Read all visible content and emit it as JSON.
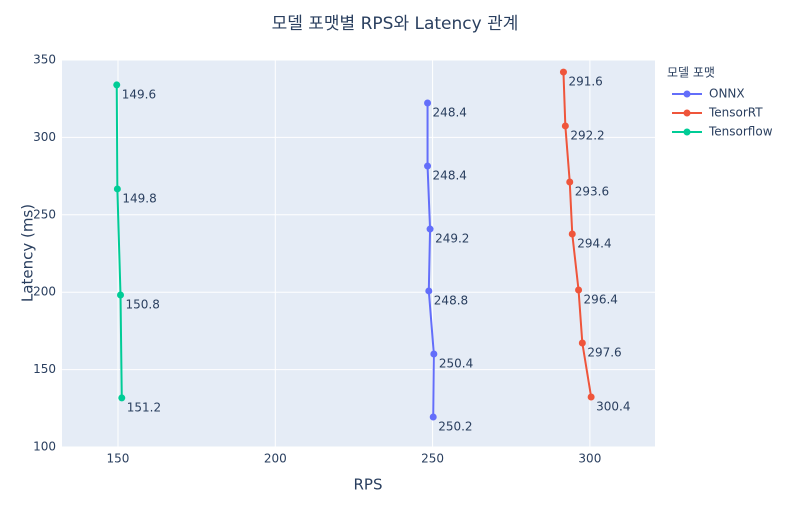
{
  "chart_data": {
    "type": "line",
    "title": "모델 포맷별 RPS와 Latency 관계",
    "x_label": "RPS",
    "y_label": "Latency (ms)",
    "legend_title": "모델 포맷",
    "xlim": [
      132.2,
      320.7
    ],
    "xticks": [
      150,
      200,
      250,
      300
    ],
    "ylim": [
      100,
      350
    ],
    "yticks": [
      100,
      150,
      200,
      250,
      300,
      350
    ],
    "grid": true,
    "legend": "right",
    "series": [
      {
        "name": "ONNX",
        "color": "#636efa",
        "x": [
          248.4,
          248.4,
          249.2,
          248.8,
          250.4,
          250.2
        ],
        "values": [
          322.2,
          281.5,
          240.8,
          200.8,
          160.1,
          119.4
        ]
      },
      {
        "name": "TensorRT",
        "color": "#ef553b",
        "x": [
          291.6,
          292.2,
          293.6,
          294.4,
          296.4,
          297.6,
          300.4
        ],
        "values": [
          342.2,
          307.4,
          271.2,
          237.6,
          201.4,
          167.2,
          132.3
        ]
      },
      {
        "name": "Tensorflow",
        "color": "#00cc96",
        "x": [
          149.6,
          149.8,
          150.8,
          151.2
        ],
        "values": [
          333.9,
          266.7,
          198.2,
          131.7
        ]
      }
    ]
  }
}
